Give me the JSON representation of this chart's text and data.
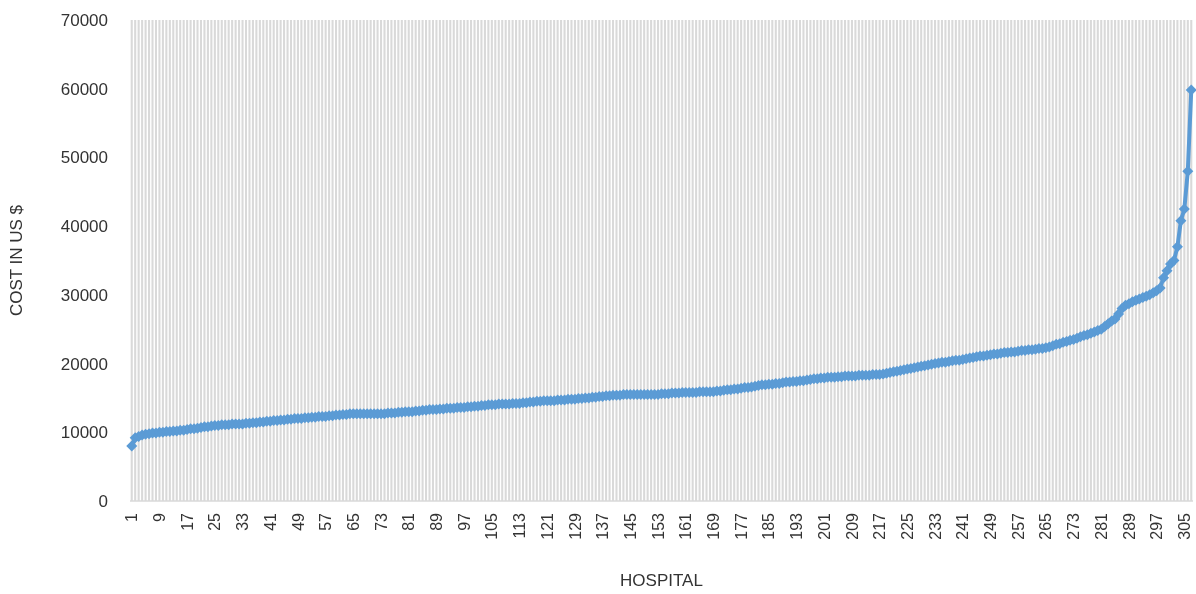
{
  "chart_data": {
    "type": "line",
    "xlabel": "HOSPITAL",
    "ylabel": "COST IN US $",
    "categories": [
      "1",
      null,
      null,
      null,
      null,
      null,
      null,
      null,
      "9",
      null,
      null,
      null,
      null,
      null,
      null,
      null,
      "17",
      null,
      null,
      null,
      null,
      null,
      null,
      null,
      "25",
      null,
      null,
      null,
      null,
      null,
      null,
      null,
      "33",
      null,
      null,
      null,
      null,
      null,
      null,
      null,
      "41",
      null,
      null,
      null,
      null,
      null,
      null,
      null,
      "49",
      null,
      null,
      null,
      null,
      null,
      null,
      null,
      "57",
      null,
      null,
      null,
      null,
      null,
      null,
      null,
      "65",
      null,
      null,
      null,
      null,
      null,
      null,
      null,
      "73",
      null,
      null,
      null,
      null,
      null,
      null,
      null,
      "81",
      null,
      null,
      null,
      null,
      null,
      null,
      null,
      "89",
      null,
      null,
      null,
      null,
      null,
      null,
      null,
      "97",
      null,
      null,
      null,
      null,
      null,
      null,
      null,
      "105",
      null,
      null,
      null,
      null,
      null,
      null,
      null,
      "113",
      null,
      null,
      null,
      null,
      null,
      null,
      null,
      "121",
      null,
      null,
      null,
      null,
      null,
      null,
      null,
      "129",
      null,
      null,
      null,
      null,
      null,
      null,
      null,
      "137",
      null,
      null,
      null,
      null,
      null,
      null,
      null,
      "145",
      null,
      null,
      null,
      null,
      null,
      null,
      null,
      "153",
      null,
      null,
      null,
      null,
      null,
      null,
      null,
      "161",
      null,
      null,
      null,
      null,
      null,
      null,
      null,
      "169",
      null,
      null,
      null,
      null,
      null,
      null,
      null,
      "177",
      null,
      null,
      null,
      null,
      null,
      null,
      null,
      "185",
      null,
      null,
      null,
      null,
      null,
      null,
      null,
      "193",
      null,
      null,
      null,
      null,
      null,
      null,
      null,
      "201",
      null,
      null,
      null,
      null,
      null,
      null,
      null,
      "209",
      null,
      null,
      null,
      null,
      null,
      null,
      null,
      "217",
      null,
      null,
      null,
      null,
      null,
      null,
      null,
      "225",
      null,
      null,
      null,
      null,
      null,
      null,
      null,
      "233",
      null,
      null,
      null,
      null,
      null,
      null,
      null,
      "241",
      null,
      null,
      null,
      null,
      null,
      null,
      null,
      "249",
      null,
      null,
      null,
      null,
      null,
      null,
      null,
      "257",
      null,
      null,
      null,
      null,
      null,
      null,
      null,
      "265",
      null,
      null,
      null,
      null,
      null,
      null,
      null,
      "273",
      null,
      null,
      null,
      null,
      null,
      null,
      null,
      "281",
      null,
      null,
      null,
      null,
      null,
      null,
      null,
      "289",
      null,
      null,
      null,
      null,
      null,
      null,
      null,
      "297",
      null,
      null,
      null,
      null,
      null,
      null,
      null,
      "305",
      null,
      null
    ],
    "series": [
      {
        "color": "#5b9bd5",
        "values": [
          8000,
          9200,
          9400,
          9600,
          9700,
          9800,
          9900,
          9900,
          10000,
          10000,
          10100,
          10100,
          10200,
          10200,
          10300,
          10300,
          10400,
          10500,
          10500,
          10600,
          10700,
          10800,
          10800,
          10900,
          11000,
          11000,
          11100,
          11100,
          11100,
          11200,
          11200,
          11200,
          11200,
          11300,
          11300,
          11400,
          11400,
          11500,
          11500,
          11600,
          11600,
          11700,
          11700,
          11800,
          11800,
          11900,
          11900,
          12000,
          12000,
          12000,
          12100,
          12100,
          12200,
          12200,
          12300,
          12300,
          12300,
          12400,
          12400,
          12500,
          12500,
          12600,
          12600,
          12700,
          12700,
          12700,
          12700,
          12700,
          12700,
          12700,
          12700,
          12700,
          12700,
          12700,
          12800,
          12800,
          12800,
          12900,
          12900,
          13000,
          13000,
          13000,
          13100,
          13100,
          13200,
          13200,
          13300,
          13300,
          13300,
          13400,
          13400,
          13500,
          13500,
          13500,
          13600,
          13600,
          13600,
          13700,
          13700,
          13800,
          13800,
          13900,
          13900,
          14000,
          14000,
          14000,
          14100,
          14100,
          14100,
          14100,
          14200,
          14200,
          14200,
          14300,
          14300,
          14400,
          14400,
          14500,
          14500,
          14600,
          14600,
          14600,
          14600,
          14700,
          14700,
          14700,
          14800,
          14800,
          14800,
          14900,
          14900,
          15000,
          15000,
          15100,
          15100,
          15200,
          15200,
          15300,
          15300,
          15400,
          15400,
          15400,
          15500,
          15500,
          15500,
          15500,
          15500,
          15500,
          15500,
          15500,
          15500,
          15500,
          15500,
          15600,
          15600,
          15600,
          15700,
          15700,
          15700,
          15800,
          15800,
          15800,
          15800,
          15800,
          15900,
          15900,
          15900,
          15900,
          15900,
          16000,
          16000,
          16100,
          16200,
          16200,
          16300,
          16300,
          16400,
          16500,
          16500,
          16600,
          16700,
          16800,
          16900,
          16900,
          17000,
          17000,
          17100,
          17100,
          17200,
          17300,
          17300,
          17400,
          17400,
          17500,
          17500,
          17600,
          17700,
          17800,
          17800,
          17900,
          17900,
          18000,
          18000,
          18000,
          18100,
          18100,
          18200,
          18200,
          18200,
          18200,
          18300,
          18300,
          18300,
          18300,
          18400,
          18400,
          18400,
          18500,
          18600,
          18700,
          18800,
          18900,
          19000,
          19100,
          19200,
          19300,
          19400,
          19500,
          19600,
          19700,
          19800,
          19900,
          20000,
          20100,
          20200,
          20200,
          20300,
          20400,
          20500,
          20500,
          20600,
          20700,
          20800,
          20900,
          21000,
          21100,
          21100,
          21200,
          21300,
          21400,
          21400,
          21500,
          21600,
          21600,
          21700,
          21700,
          21800,
          21900,
          21900,
          22000,
          22000,
          22100,
          22200,
          22200,
          22300,
          22400,
          22600,
          22800,
          22900,
          23100,
          23200,
          23400,
          23500,
          23700,
          23900,
          24100,
          24200,
          24400,
          24600,
          24800,
          25000,
          25400,
          25800,
          26200,
          26500,
          27200,
          28000,
          28500,
          28700,
          29000,
          29200,
          29400,
          29600,
          29800,
          30000,
          30300,
          30600,
          31000,
          32500,
          33500,
          34500,
          35000,
          37000,
          40800,
          42500,
          48000,
          59800
        ]
      }
    ],
    "ylim": [
      0,
      70000
    ],
    "yticks": [
      0,
      10000,
      20000,
      30000,
      40000,
      50000,
      60000,
      70000
    ],
    "grid": "x",
    "marker": "diamond",
    "line_style": "solid"
  }
}
